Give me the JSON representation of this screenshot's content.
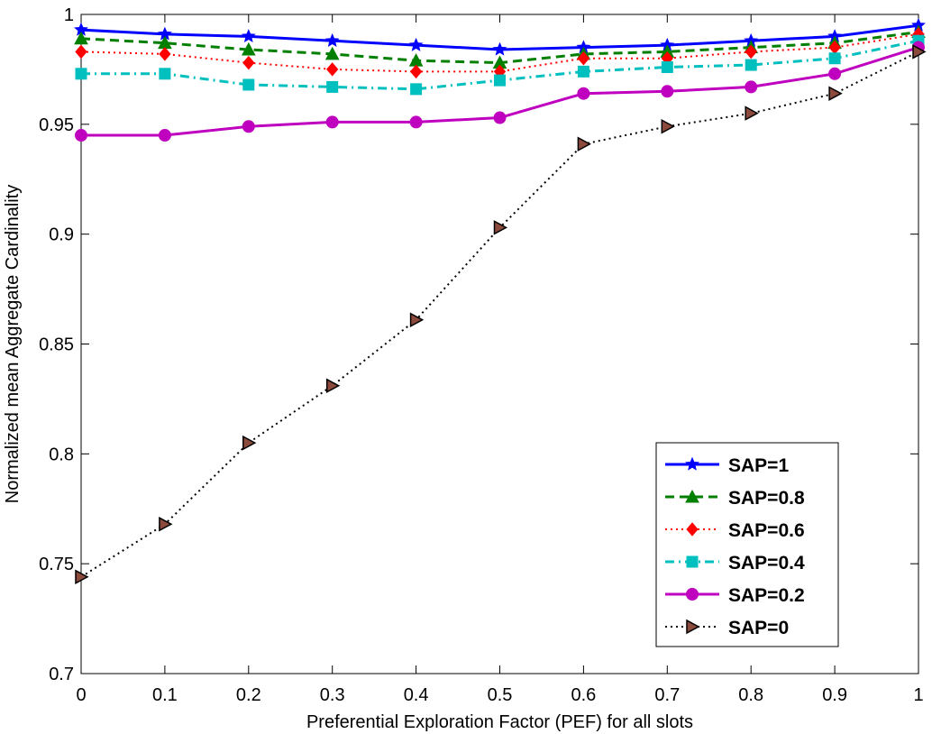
{
  "chart_data": {
    "type": "line",
    "title": "",
    "xlabel": "Preferential Exploration Factor (PEF) for all slots",
    "ylabel": "Normalized mean Aggregate Cardinality",
    "xlim": [
      0,
      1
    ],
    "ylim": [
      0.7,
      1
    ],
    "x": [
      0,
      0.1,
      0.2,
      0.3,
      0.4,
      0.5,
      0.6,
      0.7,
      0.8,
      0.9,
      1
    ],
    "xticks": [
      "0",
      "0.1",
      "0.2",
      "0.3",
      "0.4",
      "0.5",
      "0.6",
      "0.7",
      "0.8",
      "0.9",
      "1"
    ],
    "xtick_values": [
      0,
      0.1,
      0.2,
      0.3,
      0.4,
      0.5,
      0.6,
      0.7,
      0.8,
      0.9,
      1
    ],
    "yticks": [
      "0.7",
      "0.75",
      "0.8",
      "0.85",
      "0.9",
      "0.95",
      "1"
    ],
    "ytick_values": [
      0.7,
      0.75,
      0.8,
      0.85,
      0.9,
      0.95,
      1
    ],
    "legend_position": "bottom-right",
    "grid": false,
    "series": [
      {
        "name": "SAP=1",
        "color": "#0000ff",
        "dash": "solid",
        "marker": "star",
        "values": [
          0.993,
          0.991,
          0.99,
          0.988,
          0.986,
          0.984,
          0.985,
          0.986,
          0.988,
          0.99,
          0.995
        ]
      },
      {
        "name": "SAP=0.8",
        "color": "#007f00",
        "dash": "dashed",
        "marker": "triangle",
        "values": [
          0.989,
          0.987,
          0.984,
          0.982,
          0.979,
          0.978,
          0.982,
          0.983,
          0.985,
          0.987,
          0.992
        ]
      },
      {
        "name": "SAP=0.6",
        "color": "#ff0000",
        "dash": "dotted",
        "marker": "diamond",
        "values": [
          0.983,
          0.982,
          0.978,
          0.975,
          0.974,
          0.974,
          0.98,
          0.98,
          0.983,
          0.985,
          0.991
        ]
      },
      {
        "name": "SAP=0.4",
        "color": "#00bfbf",
        "dash": "dashdot",
        "marker": "square",
        "values": [
          0.973,
          0.973,
          0.968,
          0.967,
          0.966,
          0.97,
          0.974,
          0.976,
          0.977,
          0.98,
          0.988
        ]
      },
      {
        "name": "SAP=0.2",
        "color": "#bf00bf",
        "dash": "solid",
        "marker": "circle",
        "values": [
          0.945,
          0.945,
          0.949,
          0.951,
          0.951,
          0.953,
          0.964,
          0.965,
          0.967,
          0.973,
          0.985
        ]
      },
      {
        "name": "SAP=0",
        "color": "#000000",
        "dash": "dotted",
        "marker": "triangle-right",
        "values": [
          0.744,
          0.768,
          0.805,
          0.831,
          0.861,
          0.903,
          0.941,
          0.949,
          0.955,
          0.964,
          0.983
        ]
      }
    ]
  }
}
